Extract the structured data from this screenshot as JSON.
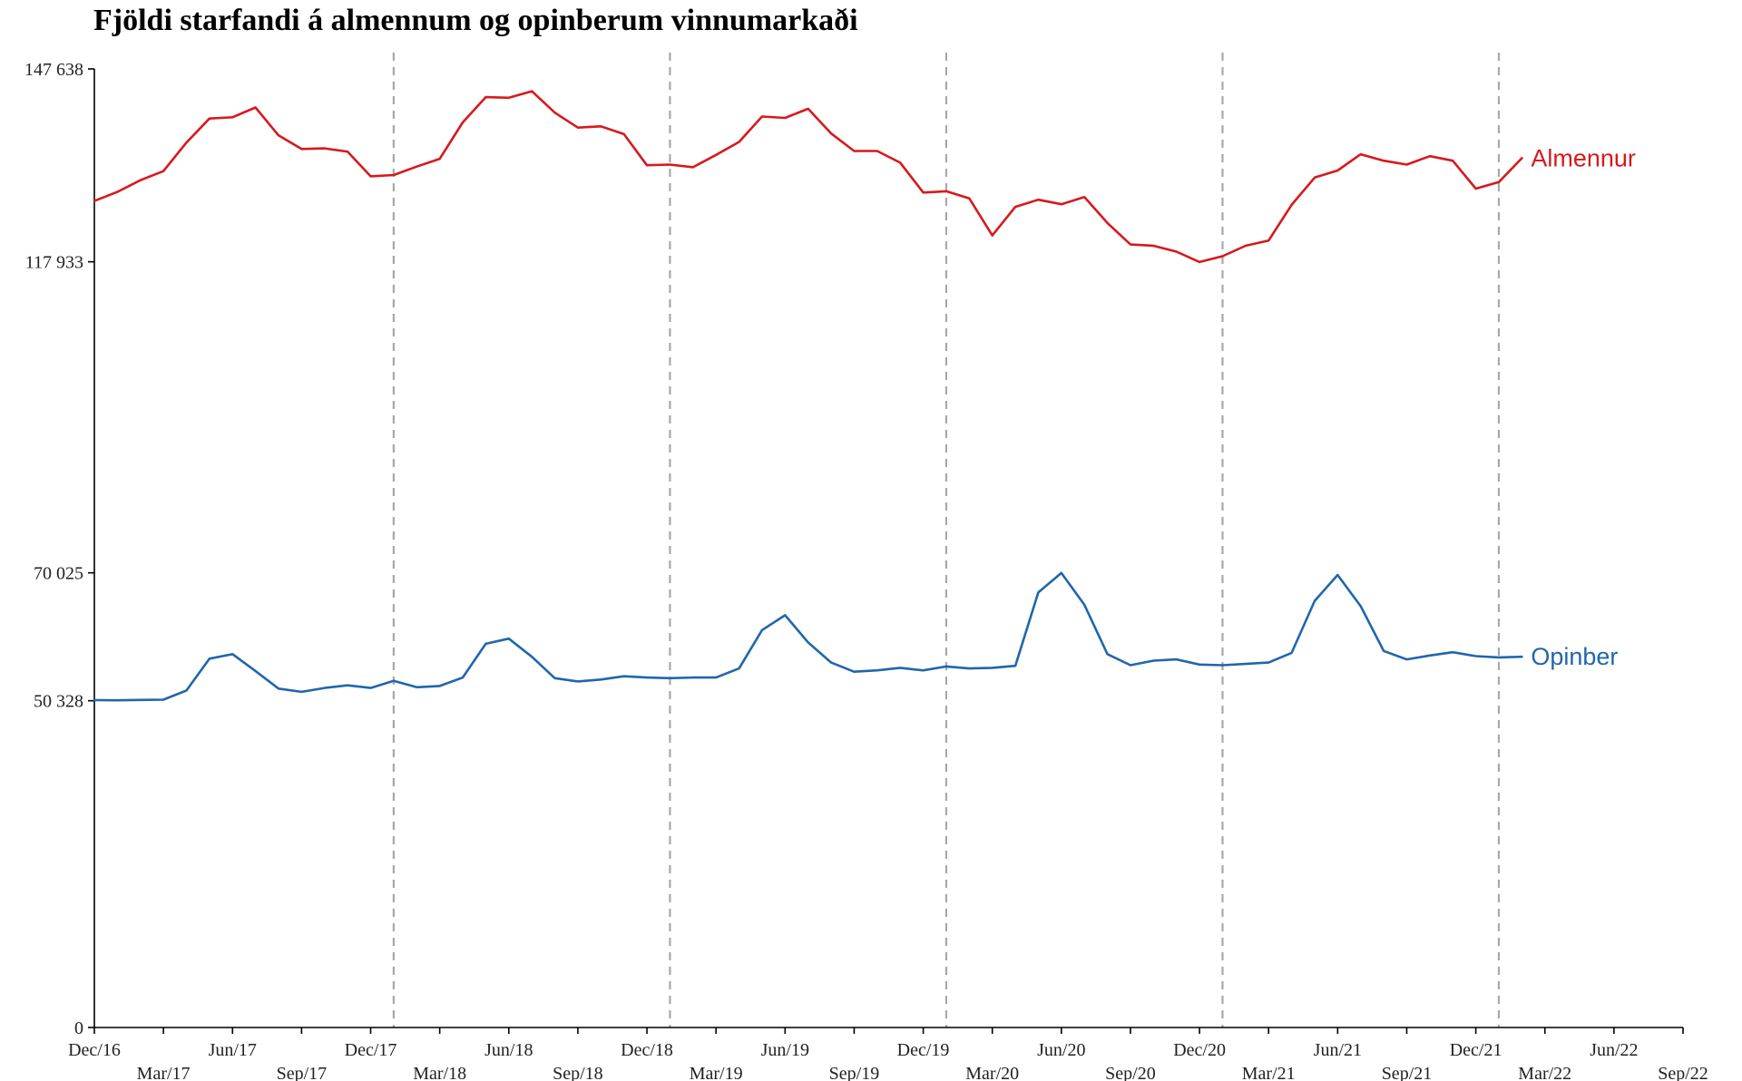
{
  "chart_data": {
    "type": "line",
    "title": "Fjöldi starfandi á almennum og opinberum vinnumarkaði",
    "xlabel": "",
    "ylabel": "",
    "x_start": "2016-12",
    "x_end": "2022-03",
    "xlim": [
      "2016-12",
      "2022-09"
    ],
    "ylim": [
      0,
      147638
    ],
    "yticks": [
      {
        "value": 0,
        "label": "0"
      },
      {
        "value": 50328,
        "label": "50 328"
      },
      {
        "value": 70025,
        "label": "70 025"
      },
      {
        "value": 117933,
        "label": "117 933"
      },
      {
        "value": 147638,
        "label": "147 638"
      }
    ],
    "xticks": [
      {
        "date": "2016-12",
        "label": "Dec/16"
      },
      {
        "date": "2017-03",
        "label": "Mar/17"
      },
      {
        "date": "2017-06",
        "label": "Jun/17"
      },
      {
        "date": "2017-09",
        "label": "Sep/17"
      },
      {
        "date": "2017-12",
        "label": "Dec/17"
      },
      {
        "date": "2018-03",
        "label": "Mar/18"
      },
      {
        "date": "2018-06",
        "label": "Jun/18"
      },
      {
        "date": "2018-09",
        "label": "Sep/18"
      },
      {
        "date": "2018-12",
        "label": "Dec/18"
      },
      {
        "date": "2019-03",
        "label": "Mar/19"
      },
      {
        "date": "2019-06",
        "label": "Jun/19"
      },
      {
        "date": "2019-09",
        "label": "Sep/19"
      },
      {
        "date": "2019-12",
        "label": "Dec/19"
      },
      {
        "date": "2020-03",
        "label": "Mar/20"
      },
      {
        "date": "2020-06",
        "label": "Jun/20"
      },
      {
        "date": "2020-09",
        "label": "Sep/20"
      },
      {
        "date": "2020-12",
        "label": "Dec/20"
      },
      {
        "date": "2021-03",
        "label": "Mar/21"
      },
      {
        "date": "2021-06",
        "label": "Jun/21"
      },
      {
        "date": "2021-09",
        "label": "Sep/21"
      },
      {
        "date": "2021-12",
        "label": "Dec/21"
      },
      {
        "date": "2022-03",
        "label": "Mar/22"
      },
      {
        "date": "2022-06",
        "label": "Jun/22"
      },
      {
        "date": "2022-09",
        "label": "Sep/22"
      }
    ],
    "vlines": [
      "2018-01",
      "2019-01",
      "2020-01",
      "2021-01",
      "2022-01"
    ],
    "grid": false,
    "legend": "end-of-line labels",
    "series": [
      {
        "name": "Almennur",
        "color": "#d7191c",
        "values": [
          127300,
          128700,
          130500,
          131900,
          136300,
          140000,
          140200,
          141700,
          137400,
          135300,
          135400,
          134900,
          131100,
          131300,
          132600,
          133800,
          139400,
          143300,
          143200,
          144200,
          140900,
          138600,
          138800,
          137600,
          132800,
          132900,
          132500,
          134400,
          136400,
          140300,
          140100,
          141500,
          137700,
          135000,
          135000,
          133200,
          128600,
          128800,
          127700,
          122000,
          126400,
          127500,
          126800,
          127900,
          123900,
          120600,
          120400,
          119500,
          117900,
          118800,
          120400,
          121200,
          126700,
          130900,
          132000,
          134500,
          133500,
          132900,
          134200,
          133500,
          129200,
          130200,
          133900
        ]
      },
      {
        "name": "Opinber",
        "color": "#2166ac",
        "values": [
          50420,
          50400,
          50450,
          50500,
          51900,
          56800,
          57500,
          54900,
          52200,
          51700,
          52300,
          52700,
          52300,
          53400,
          52400,
          52600,
          53900,
          59100,
          59900,
          57100,
          53800,
          53300,
          53600,
          54100,
          53900,
          53800,
          53900,
          53900,
          55300,
          61200,
          63500,
          59300,
          56200,
          54800,
          55000,
          55400,
          55000,
          55600,
          55300,
          55400,
          55700,
          67000,
          70000,
          65100,
          57500,
          55800,
          56500,
          56700,
          55900,
          55800,
          56000,
          56200,
          57700,
          65700,
          69700,
          64900,
          58000,
          56700,
          57300,
          57800,
          57200,
          57000,
          57100
        ]
      }
    ]
  }
}
